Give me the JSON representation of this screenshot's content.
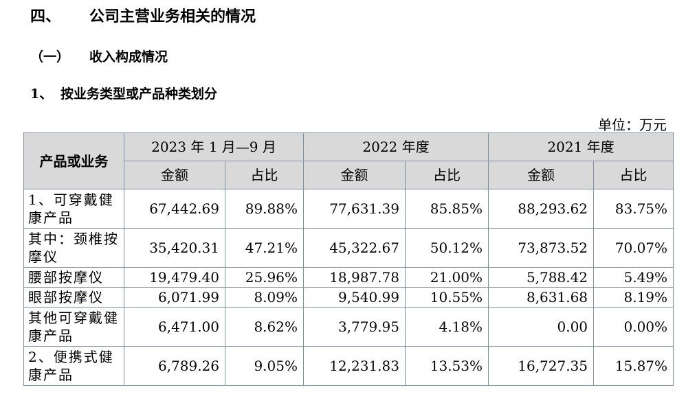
{
  "section": {
    "number": "四、",
    "title": "公司主营业务相关的情况"
  },
  "subsection": {
    "number": "（一）",
    "title": "收入构成情况"
  },
  "item": {
    "number": "1、",
    "title": "按业务类型或产品种类划分"
  },
  "unit_label": "单位：万元",
  "table": {
    "row_header": "产品或业务",
    "periods": [
      "2023 年 1 月—9 月",
      "2022 年度",
      "2021 年度"
    ],
    "sub_headers": {
      "amount": "金额",
      "ratio": "占比"
    },
    "rows": [
      {
        "name": "1、可穿戴健康产品",
        "cells": [
          "67,442.69",
          "89.88%",
          "77,631.39",
          "85.85%",
          "88,293.62",
          "83.75%"
        ]
      },
      {
        "name": "其中：颈椎按摩仪",
        "cells": [
          "35,420.31",
          "47.21%",
          "45,322.67",
          "50.12%",
          "73,873.52",
          "70.07%"
        ]
      },
      {
        "name": "腰部按摩仪",
        "cells": [
          "19,479.40",
          "25.96%",
          "18,987.78",
          "21.00%",
          "5,788.42",
          "5.49%"
        ]
      },
      {
        "name": "眼部按摩仪",
        "cells": [
          "6,071.99",
          "8.09%",
          "9,540.99",
          "10.55%",
          "8,631.68",
          "8.19%"
        ]
      },
      {
        "name": "其他可穿戴健康产品",
        "cells": [
          "6,471.00",
          "8.62%",
          "3,779.95",
          "4.18%",
          "0.00",
          "0.00%"
        ]
      },
      {
        "name": "2、便携式健康产品",
        "cells": [
          "6,789.26",
          "9.05%",
          "12,231.83",
          "13.53%",
          "16,727.35",
          "15.87%"
        ]
      }
    ]
  }
}
